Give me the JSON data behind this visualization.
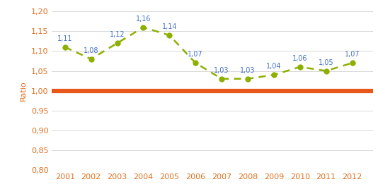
{
  "years": [
    2001,
    2002,
    2003,
    2004,
    2005,
    2006,
    2007,
    2008,
    2009,
    2010,
    2011,
    2012
  ],
  "ratios": [
    1.11,
    1.08,
    1.12,
    1.16,
    1.14,
    1.07,
    1.03,
    1.03,
    1.04,
    1.06,
    1.05,
    1.07
  ],
  "baseline": 1.0,
  "line_color": "#8db000",
  "baseline_color": "#e8581a",
  "ylabel": "Ratio",
  "ylim": [
    0.8,
    1.2
  ],
  "ytick_values": [
    0.8,
    0.85,
    0.9,
    0.95,
    1.0,
    1.05,
    1.1,
    1.15,
    1.2
  ],
  "ytick_labels": [
    "0,80",
    "0,85",
    "0,90",
    "0,95",
    "1,00",
    "1,05",
    "1,10",
    "1,15",
    "1,20"
  ],
  "background_color": "#ffffff",
  "grid_color": "#d8d8d8",
  "tick_label_color": "#e07020",
  "annotation_color": "#4472c4",
  "annotation_fontsize": 7.0,
  "axis_fontsize": 8.0,
  "ylabel_color": "#e07020",
  "line_width": 1.8,
  "marker_size": 5
}
